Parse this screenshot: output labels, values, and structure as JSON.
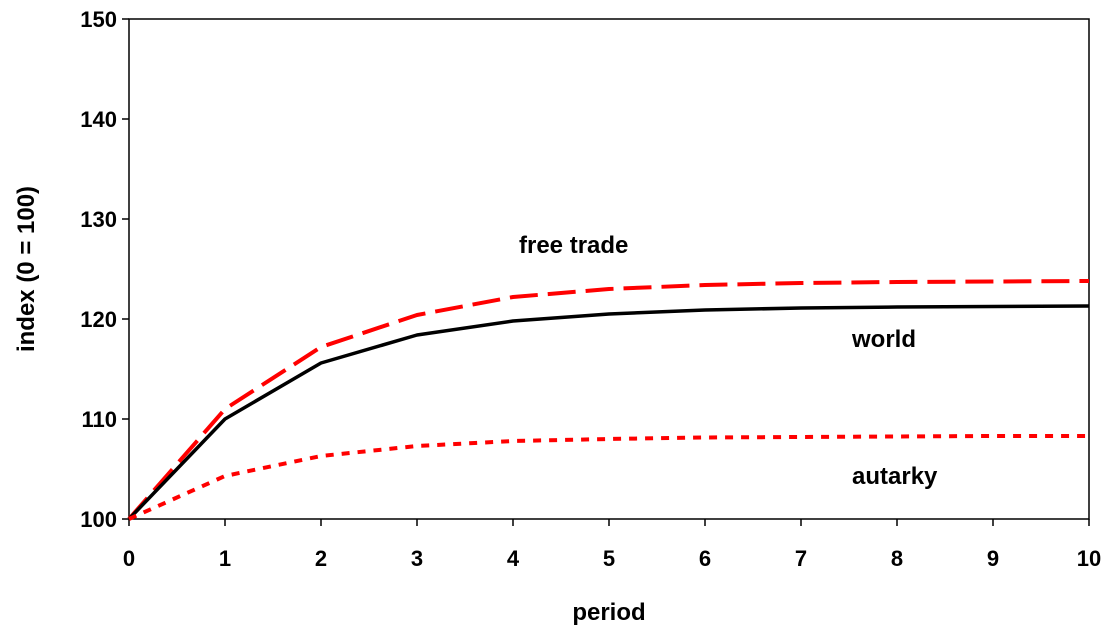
{
  "chart_data": {
    "type": "line",
    "title": "",
    "xlabel": "period",
    "ylabel": "index (0 = 100)",
    "xlim": [
      0,
      10
    ],
    "ylim": [
      100,
      150
    ],
    "x_ticks": [
      "0",
      "1",
      "2",
      "3",
      "4",
      "5",
      "6",
      "7",
      "8",
      "9",
      "10"
    ],
    "y_ticks": [
      "100",
      "110",
      "120",
      "130",
      "140",
      "150"
    ],
    "x": [
      0,
      1,
      2,
      3,
      4,
      5,
      6,
      7,
      8,
      9,
      10
    ],
    "grid": false,
    "legend": "none (series labeled directly on chart)",
    "series": [
      {
        "name": "free trade",
        "color": "#ff0000",
        "line_style": "dashed",
        "values": [
          100,
          111.0,
          117.2,
          120.4,
          122.2,
          123.0,
          123.4,
          123.6,
          123.7,
          123.75,
          123.8
        ]
      },
      {
        "name": "world",
        "color": "#000000",
        "line_style": "solid",
        "values": [
          100,
          110.0,
          115.6,
          118.4,
          119.8,
          120.5,
          120.9,
          121.1,
          121.2,
          121.25,
          121.3
        ]
      },
      {
        "name": "autarky",
        "color": "#ff0000",
        "line_style": "dotted",
        "values": [
          100,
          104.3,
          106.3,
          107.3,
          107.8,
          108.0,
          108.15,
          108.2,
          108.25,
          108.3,
          108.3
        ]
      }
    ]
  }
}
